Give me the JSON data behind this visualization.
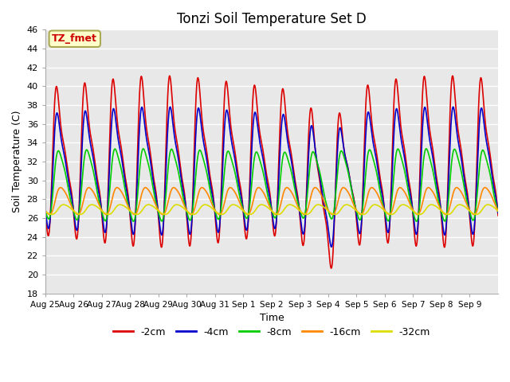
{
  "title": "Tonzi Soil Temperature Set D",
  "xlabel": "Time",
  "ylabel": "Soil Temperature (C)",
  "annotation": "TZ_fmet",
  "ylim": [
    18,
    46
  ],
  "yticks": [
    18,
    20,
    22,
    24,
    26,
    28,
    30,
    32,
    34,
    36,
    38,
    40,
    42,
    44,
    46
  ],
  "x_labels": [
    "Aug 25",
    "Aug 26",
    "Aug 27",
    "Aug 28",
    "Aug 29",
    "Aug 30",
    "Aug 31",
    "Sep 1",
    "Sep 2",
    "Sep 3",
    "Sep 4",
    "Sep 5",
    "Sep 6",
    "Sep 7",
    "Sep 8",
    "Sep 9"
  ],
  "series": {
    "-2cm": {
      "color": "#dd0000",
      "lw": 1.2,
      "amp": 10.5,
      "mean": 32.0,
      "phase_lag": 0.0,
      "sharpness": 3.0
    },
    "-4cm": {
      "color": "#0000cc",
      "lw": 1.2,
      "amp": 8.0,
      "mean": 31.0,
      "phase_lag": 0.08,
      "sharpness": 2.5
    },
    "-8cm": {
      "color": "#00cc00",
      "lw": 1.2,
      "amp": 4.5,
      "mean": 29.5,
      "phase_lag": 0.25,
      "sharpness": 1.5
    },
    "-16cm": {
      "color": "#ff8800",
      "lw": 1.2,
      "amp": 1.7,
      "mean": 27.8,
      "phase_lag": 0.6,
      "sharpness": 1.0
    },
    "-32cm": {
      "color": "#dddd00",
      "lw": 1.2,
      "amp": 0.6,
      "mean": 26.9,
      "phase_lag": 1.2,
      "sharpness": 0.8
    }
  },
  "legend_labels": [
    "-2cm",
    "-4cm",
    "-8cm",
    "-16cm",
    "-32cm"
  ],
  "legend_colors": [
    "#dd0000",
    "#0000cc",
    "#00cc00",
    "#ff8800",
    "#dddd00"
  ],
  "plot_bg_color": "#e8e8e8",
  "annotation_bg": "#ffffcc",
  "annotation_border": "#aaaa55"
}
